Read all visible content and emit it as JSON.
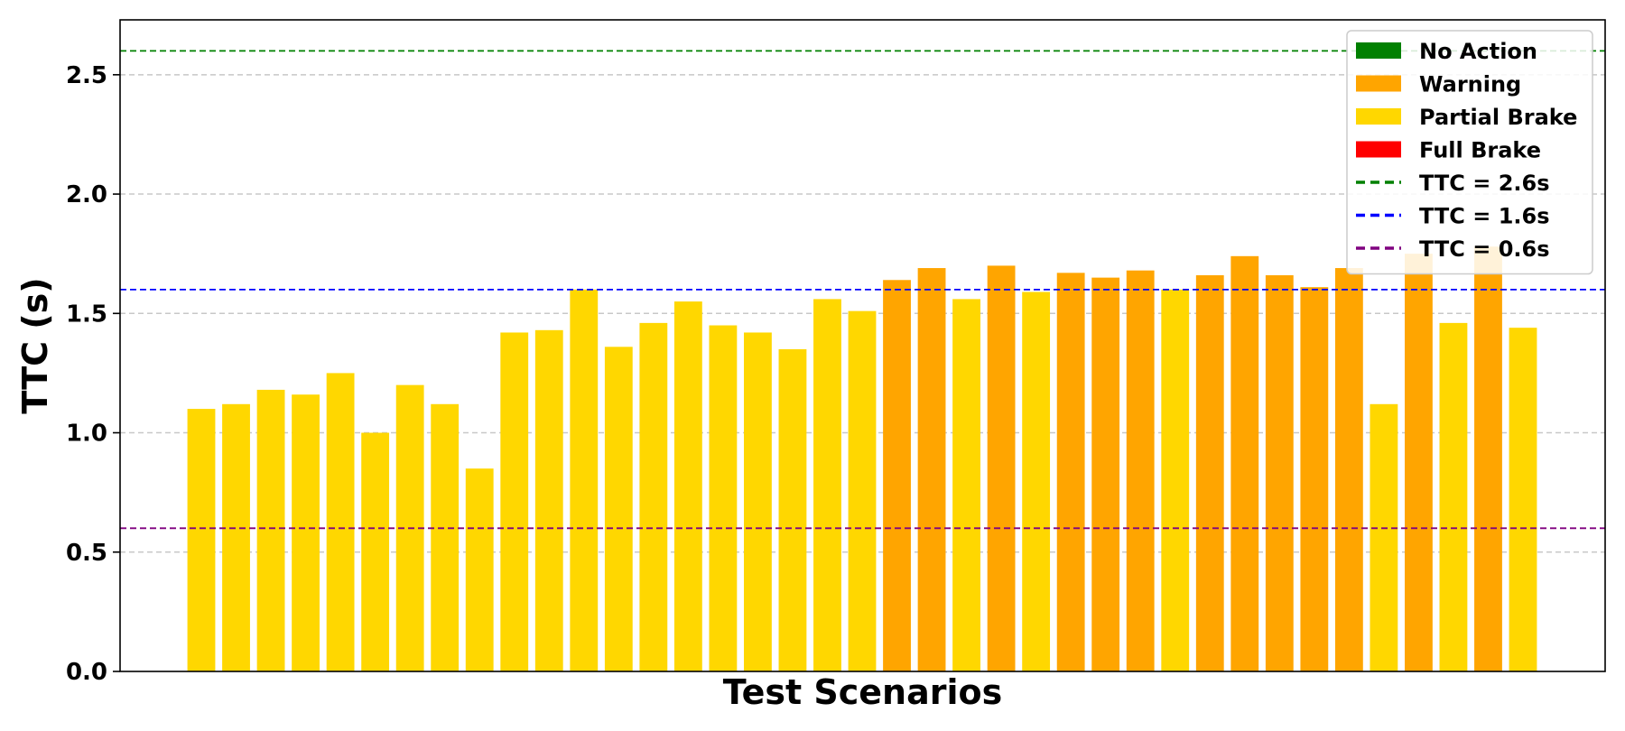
{
  "chart_data": {
    "type": "bar",
    "title": "",
    "xlabel": "Test Scenarios",
    "ylabel": "TTC (s)",
    "ylim": [
      0,
      2.73
    ],
    "yticks": [
      "0.0",
      "0.5",
      "1.0",
      "1.5",
      "2.0",
      "2.5"
    ],
    "grid": "y-dashed",
    "legend_position": "top-right",
    "categories_colors": {
      "No Action": "#008000",
      "Warning": "#FFA500",
      "Partial Brake": "#FFD700",
      "Full Brake": "#FF0000"
    },
    "values": [
      1.1,
      1.12,
      1.18,
      1.16,
      1.25,
      1.0,
      1.2,
      1.12,
      0.85,
      1.42,
      1.43,
      1.6,
      1.36,
      1.46,
      1.55,
      1.45,
      1.42,
      1.35,
      1.56,
      1.51,
      1.64,
      1.69,
      1.56,
      1.7,
      1.59,
      1.67,
      1.65,
      1.68,
      1.6,
      1.66,
      1.74,
      1.66,
      1.61,
      1.69,
      1.12,
      1.75,
      1.46,
      1.78,
      1.44
    ],
    "bar_categories": [
      "Partial Brake",
      "Partial Brake",
      "Partial Brake",
      "Partial Brake",
      "Partial Brake",
      "Partial Brake",
      "Partial Brake",
      "Partial Brake",
      "Partial Brake",
      "Partial Brake",
      "Partial Brake",
      "Partial Brake",
      "Partial Brake",
      "Partial Brake",
      "Partial Brake",
      "Partial Brake",
      "Partial Brake",
      "Partial Brake",
      "Partial Brake",
      "Partial Brake",
      "Warning",
      "Warning",
      "Partial Brake",
      "Warning",
      "Partial Brake",
      "Warning",
      "Warning",
      "Warning",
      "Partial Brake",
      "Warning",
      "Warning",
      "Warning",
      "Warning",
      "Warning",
      "Partial Brake",
      "Warning",
      "Partial Brake",
      "Warning",
      "Partial Brake"
    ],
    "thresholds": [
      {
        "label": "TTC = 2.6s",
        "value": 2.6,
        "color": "#008000"
      },
      {
        "label": "TTC = 1.6s",
        "value": 1.6,
        "color": "#0000FF"
      },
      {
        "label": "TTC = 0.6s",
        "value": 0.6,
        "color": "#800080"
      }
    ],
    "legend": [
      {
        "label": "No Action",
        "kind": "patch",
        "color": "#008000"
      },
      {
        "label": "Warning",
        "kind": "patch",
        "color": "#FFA500"
      },
      {
        "label": "Partial Brake",
        "kind": "patch",
        "color": "#FFD700"
      },
      {
        "label": "Full Brake",
        "kind": "patch",
        "color": "#FF0000"
      },
      {
        "label": "TTC = 2.6s",
        "kind": "line",
        "color": "#008000"
      },
      {
        "label": "TTC = 1.6s",
        "kind": "line",
        "color": "#0000FF"
      },
      {
        "label": "TTC = 0.6s",
        "kind": "line",
        "color": "#800080"
      }
    ]
  }
}
